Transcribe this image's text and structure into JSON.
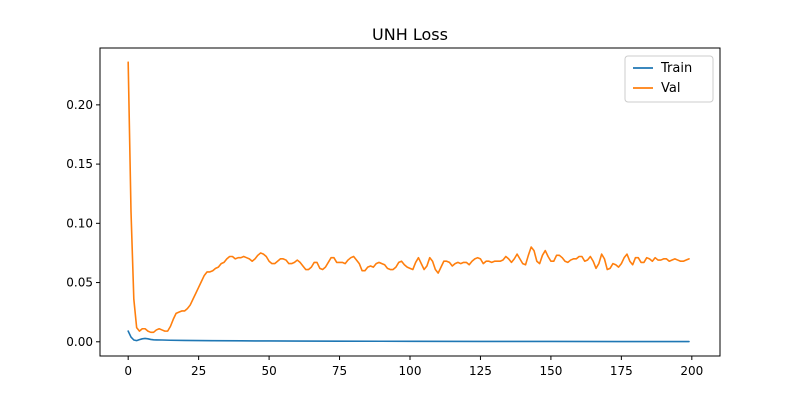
{
  "chart_data": {
    "type": "line",
    "title": "UNH Loss",
    "xlabel": "",
    "ylabel": "",
    "xlim": [
      -10,
      210
    ],
    "ylim": [
      -0.012,
      0.248
    ],
    "xticks": [
      0,
      25,
      50,
      75,
      100,
      125,
      150,
      175,
      200
    ],
    "xtick_labels": [
      "0",
      "25",
      "50",
      "75",
      "100",
      "125",
      "150",
      "175",
      "200"
    ],
    "yticks": [
      0.0,
      0.05,
      0.1,
      0.15,
      0.2
    ],
    "ytick_labels": [
      "0.00",
      "0.05",
      "0.10",
      "0.15",
      "0.20"
    ],
    "grid": false,
    "legend": "top-right",
    "series": [
      {
        "name": "Train",
        "color": "#1f77b4",
        "points": [
          [
            0,
            0.009
          ],
          [
            1,
            0.004
          ],
          [
            2,
            0.0015
          ],
          [
            3,
            0.001
          ],
          [
            4,
            0.0018
          ],
          [
            5,
            0.0025
          ],
          [
            6,
            0.0028
          ],
          [
            7,
            0.0025
          ],
          [
            8,
            0.002
          ],
          [
            9,
            0.0017
          ],
          [
            10,
            0.0016
          ],
          [
            12,
            0.0015
          ],
          [
            15,
            0.0013
          ],
          [
            20,
            0.0011
          ],
          [
            25,
            0.001
          ],
          [
            30,
            0.0009
          ],
          [
            40,
            0.0008
          ],
          [
            50,
            0.0007
          ],
          [
            60,
            0.0006
          ],
          [
            75,
            0.0005
          ],
          [
            100,
            0.0004
          ],
          [
            125,
            0.0003
          ],
          [
            150,
            0.0003
          ],
          [
            175,
            0.0002
          ],
          [
            199,
            0.0002
          ]
        ]
      },
      {
        "name": "Val",
        "color": "#ff7f0e",
        "points": [
          [
            0,
            0.236
          ],
          [
            1,
            0.11
          ],
          [
            2,
            0.036
          ],
          [
            3,
            0.012
          ],
          [
            4,
            0.009
          ],
          [
            5,
            0.011
          ],
          [
            6,
            0.011
          ],
          [
            7,
            0.009
          ],
          [
            8,
            0.008
          ],
          [
            9,
            0.008
          ],
          [
            10,
            0.01
          ],
          [
            11,
            0.011
          ],
          [
            12,
            0.01
          ],
          [
            13,
            0.009
          ],
          [
            14,
            0.009
          ],
          [
            15,
            0.013
          ],
          [
            16,
            0.019
          ],
          [
            17,
            0.024
          ],
          [
            18,
            0.025
          ],
          [
            19,
            0.026
          ],
          [
            20,
            0.026
          ],
          [
            21,
            0.028
          ],
          [
            22,
            0.031
          ],
          [
            23,
            0.036
          ],
          [
            24,
            0.041
          ],
          [
            25,
            0.046
          ],
          [
            26,
            0.051
          ],
          [
            27,
            0.056
          ],
          [
            28,
            0.059
          ],
          [
            29,
            0.059
          ],
          [
            30,
            0.06
          ],
          [
            31,
            0.062
          ],
          [
            32,
            0.063
          ],
          [
            33,
            0.066
          ],
          [
            34,
            0.067
          ],
          [
            35,
            0.07
          ],
          [
            36,
            0.072
          ],
          [
            37,
            0.072
          ],
          [
            38,
            0.07
          ],
          [
            39,
            0.071
          ],
          [
            40,
            0.071
          ],
          [
            41,
            0.072
          ],
          [
            42,
            0.071
          ],
          [
            43,
            0.07
          ],
          [
            44,
            0.068
          ],
          [
            45,
            0.07
          ],
          [
            46,
            0.073
          ],
          [
            47,
            0.075
          ],
          [
            48,
            0.074
          ],
          [
            49,
            0.072
          ],
          [
            50,
            0.068
          ],
          [
            51,
            0.066
          ],
          [
            52,
            0.066
          ],
          [
            53,
            0.068
          ],
          [
            54,
            0.07
          ],
          [
            55,
            0.07
          ],
          [
            56,
            0.069
          ],
          [
            57,
            0.066
          ],
          [
            58,
            0.066
          ],
          [
            59,
            0.067
          ],
          [
            60,
            0.069
          ],
          [
            61,
            0.067
          ],
          [
            62,
            0.064
          ],
          [
            63,
            0.061
          ],
          [
            64,
            0.061
          ],
          [
            65,
            0.063
          ],
          [
            66,
            0.067
          ],
          [
            67,
            0.067
          ],
          [
            68,
            0.062
          ],
          [
            69,
            0.061
          ],
          [
            70,
            0.063
          ],
          [
            71,
            0.067
          ],
          [
            72,
            0.071
          ],
          [
            73,
            0.071
          ],
          [
            74,
            0.067
          ],
          [
            75,
            0.067
          ],
          [
            76,
            0.067
          ],
          [
            77,
            0.066
          ],
          [
            78,
            0.069
          ],
          [
            79,
            0.071
          ],
          [
            80,
            0.072
          ],
          [
            81,
            0.069
          ],
          [
            82,
            0.066
          ],
          [
            83,
            0.06
          ],
          [
            84,
            0.06
          ],
          [
            85,
            0.063
          ],
          [
            86,
            0.064
          ],
          [
            87,
            0.063
          ],
          [
            88,
            0.066
          ],
          [
            89,
            0.067
          ],
          [
            90,
            0.066
          ],
          [
            91,
            0.065
          ],
          [
            92,
            0.062
          ],
          [
            93,
            0.061
          ],
          [
            94,
            0.061
          ],
          [
            95,
            0.063
          ],
          [
            96,
            0.067
          ],
          [
            97,
            0.068
          ],
          [
            98,
            0.065
          ],
          [
            99,
            0.063
          ],
          [
            100,
            0.062
          ],
          [
            101,
            0.061
          ],
          [
            102,
            0.067
          ],
          [
            103,
            0.071
          ],
          [
            104,
            0.066
          ],
          [
            105,
            0.061
          ],
          [
            106,
            0.064
          ],
          [
            107,
            0.071
          ],
          [
            108,
            0.068
          ],
          [
            109,
            0.061
          ],
          [
            110,
            0.058
          ],
          [
            111,
            0.063
          ],
          [
            112,
            0.068
          ],
          [
            113,
            0.068
          ],
          [
            114,
            0.067
          ],
          [
            115,
            0.064
          ],
          [
            116,
            0.066
          ],
          [
            117,
            0.067
          ],
          [
            118,
            0.066
          ],
          [
            119,
            0.067
          ],
          [
            120,
            0.067
          ],
          [
            121,
            0.065
          ],
          [
            122,
            0.068
          ],
          [
            123,
            0.07
          ],
          [
            124,
            0.071
          ],
          [
            125,
            0.07
          ],
          [
            126,
            0.066
          ],
          [
            127,
            0.068
          ],
          [
            128,
            0.068
          ],
          [
            129,
            0.067
          ],
          [
            130,
            0.068
          ],
          [
            131,
            0.068
          ],
          [
            132,
            0.068
          ],
          [
            133,
            0.069
          ],
          [
            134,
            0.072
          ],
          [
            135,
            0.07
          ],
          [
            136,
            0.067
          ],
          [
            137,
            0.07
          ],
          [
            138,
            0.074
          ],
          [
            139,
            0.07
          ],
          [
            140,
            0.066
          ],
          [
            141,
            0.065
          ],
          [
            142,
            0.073
          ],
          [
            143,
            0.08
          ],
          [
            144,
            0.077
          ],
          [
            145,
            0.068
          ],
          [
            146,
            0.066
          ],
          [
            147,
            0.073
          ],
          [
            148,
            0.077
          ],
          [
            149,
            0.072
          ],
          [
            150,
            0.068
          ],
          [
            151,
            0.068
          ],
          [
            152,
            0.073
          ],
          [
            153,
            0.073
          ],
          [
            154,
            0.071
          ],
          [
            155,
            0.068
          ],
          [
            156,
            0.067
          ],
          [
            157,
            0.069
          ],
          [
            158,
            0.07
          ],
          [
            159,
            0.07
          ],
          [
            160,
            0.072
          ],
          [
            161,
            0.072
          ],
          [
            162,
            0.068
          ],
          [
            163,
            0.069
          ],
          [
            164,
            0.072
          ],
          [
            165,
            0.068
          ],
          [
            166,
            0.062
          ],
          [
            167,
            0.066
          ],
          [
            168,
            0.074
          ],
          [
            169,
            0.07
          ],
          [
            170,
            0.061
          ],
          [
            171,
            0.062
          ],
          [
            172,
            0.066
          ],
          [
            173,
            0.065
          ],
          [
            174,
            0.063
          ],
          [
            175,
            0.066
          ],
          [
            176,
            0.071
          ],
          [
            177,
            0.074
          ],
          [
            178,
            0.068
          ],
          [
            179,
            0.065
          ],
          [
            180,
            0.071
          ],
          [
            181,
            0.071
          ],
          [
            182,
            0.067
          ],
          [
            183,
            0.067
          ],
          [
            184,
            0.071
          ],
          [
            185,
            0.07
          ],
          [
            186,
            0.068
          ],
          [
            187,
            0.071
          ],
          [
            188,
            0.069
          ],
          [
            189,
            0.069
          ],
          [
            190,
            0.07
          ],
          [
            191,
            0.07
          ],
          [
            192,
            0.068
          ],
          [
            193,
            0.069
          ],
          [
            194,
            0.07
          ],
          [
            195,
            0.069
          ],
          [
            196,
            0.068
          ],
          [
            197,
            0.068
          ],
          [
            198,
            0.069
          ],
          [
            199,
            0.07
          ]
        ]
      }
    ]
  }
}
